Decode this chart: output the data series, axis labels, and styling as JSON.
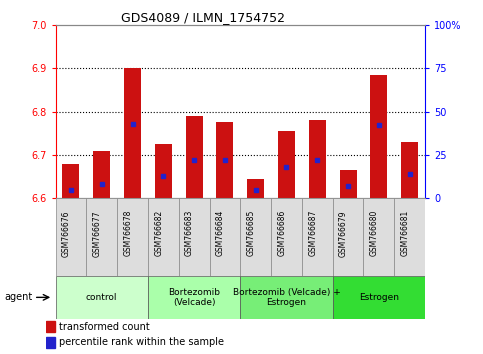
{
  "title": "GDS4089 / ILMN_1754752",
  "samples": [
    "GSM766676",
    "GSM766677",
    "GSM766678",
    "GSM766682",
    "GSM766683",
    "GSM766684",
    "GSM766685",
    "GSM766686",
    "GSM766687",
    "GSM766679",
    "GSM766680",
    "GSM766681"
  ],
  "transformed_counts": [
    6.68,
    6.71,
    6.9,
    6.725,
    6.79,
    6.775,
    6.645,
    6.755,
    6.78,
    6.665,
    6.885,
    6.73
  ],
  "percentile_ranks": [
    5,
    8,
    43,
    13,
    22,
    22,
    5,
    18,
    22,
    7,
    42,
    14
  ],
  "ymin": 6.6,
  "ymax": 7.0,
  "yticks": [
    6.6,
    6.7,
    6.8,
    6.9,
    7.0
  ],
  "y2min": 0,
  "y2max": 100,
  "y2ticks": [
    0,
    25,
    50,
    75,
    100
  ],
  "bar_color": "#cc1111",
  "percentile_color": "#2222cc",
  "groups": [
    {
      "label": "control",
      "start": 0,
      "end": 3,
      "color": "#ccffcc"
    },
    {
      "label": "Bortezomib\n(Velcade)",
      "start": 3,
      "end": 6,
      "color": "#aaffaa"
    },
    {
      "label": "Bortezomib (Velcade) +\nEstrogen",
      "start": 6,
      "end": 9,
      "color": "#77ee77"
    },
    {
      "label": "Estrogen",
      "start": 9,
      "end": 12,
      "color": "#33dd33"
    }
  ],
  "agent_label": "agent",
  "legend_items": [
    "transformed count",
    "percentile rank within the sample"
  ],
  "bar_width": 0.55
}
